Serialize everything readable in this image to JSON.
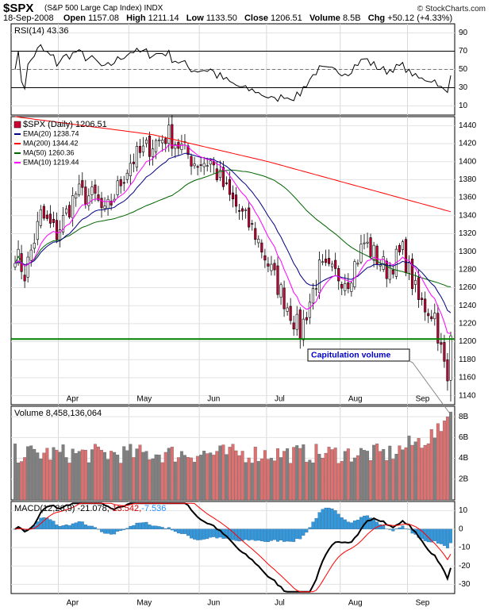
{
  "header": {
    "symbol": "$SPX",
    "name": "(S&P 500 Large Cap Index) INDX",
    "credit": "© StockCharts.com",
    "date": "18-Sep-2008",
    "open_label": "Open",
    "open": "1157.08",
    "high_label": "High",
    "high": "1211.14",
    "low_label": "Low",
    "low": "1133.50",
    "close_label": "Close",
    "close": "1206.51",
    "volume_label": "Volume",
    "volume": "8.5B",
    "chg_label": "Chg",
    "chg": "+50.12 (+4.33%)"
  },
  "rsi_panel": {
    "label": "RSI(14) 43.36",
    "ticks": [
      10,
      30,
      50,
      70,
      90
    ],
    "overbought": 70,
    "oversold": 30,
    "color": "#000000"
  },
  "price_panel": {
    "legend": [
      {
        "text": "$SPX (Daily) 1206.51",
        "color": "#000000"
      },
      {
        "text": "EMA(20) 1238.74",
        "color": "#000080"
      },
      {
        "text": "MA(200) 1344.42",
        "color": "#ff0000"
      },
      {
        "text": "MA(50) 1260.36",
        "color": "#006400"
      },
      {
        "text": "EMA(10) 1219.44",
        "color": "#ff00ff"
      }
    ],
    "ticks": [
      1140,
      1160,
      1180,
      1200,
      1220,
      1240,
      1260,
      1280,
      1300,
      1320,
      1340,
      1360,
      1380,
      1400,
      1420,
      1440
    ],
    "support_level": 1203,
    "support_color": "#008000",
    "annotation": "Capitulation volume",
    "up_color": "#ffffff",
    "down_color": "#cc0033"
  },
  "volume_panel": {
    "label": "Volume 8,458,136,064",
    "ticks": [
      "2B",
      "4B",
      "6B",
      "8B"
    ],
    "up_color": "#808080",
    "down_color": "#e07070"
  },
  "macd_panel": {
    "label_parts": [
      {
        "text": "MACD(12,26,9) -21.078,",
        "color": "#000000"
      },
      {
        "text": " -13.542,",
        "color": "#cc0000"
      },
      {
        "text": " -7.536",
        "color": "#1e90ff"
      }
    ],
    "ticks": [
      -30,
      -20,
      -10,
      0,
      10
    ],
    "hist_color": "#3399dd",
    "signal_color": "#ff0000"
  },
  "x_months": [
    "Apr",
    "May",
    "Jun",
    "Jul",
    "Aug",
    "Sep"
  ],
  "chart_data": {
    "type": "line",
    "title": "$SPX (S&P 500 Large Cap Index) INDX",
    "x_start": "2008-03-12",
    "x_end": "2008-09-18",
    "close_anchors": [
      {
        "date": "2008-03-12",
        "close": 1300
      },
      {
        "date": "2008-03-17",
        "close": 1275
      },
      {
        "date": "2008-03-24",
        "close": 1340
      },
      {
        "date": "2008-03-31",
        "close": 1320
      },
      {
        "date": "2008-04-08",
        "close": 1365
      },
      {
        "date": "2008-04-16",
        "close": 1360
      },
      {
        "date": "2008-04-21",
        "close": 1340
      },
      {
        "date": "2008-05-01",
        "close": 1400
      },
      {
        "date": "2008-05-12",
        "close": 1420
      },
      {
        "date": "2008-05-19",
        "close": 1430
      },
      {
        "date": "2008-05-29",
        "close": 1400
      },
      {
        "date": "2008-06-05",
        "close": 1400
      },
      {
        "date": "2008-06-13",
        "close": 1360
      },
      {
        "date": "2008-06-25",
        "close": 1320
      },
      {
        "date": "2008-07-03",
        "close": 1270
      },
      {
        "date": "2008-07-15",
        "close": 1210
      },
      {
        "date": "2008-07-23",
        "close": 1280
      },
      {
        "date": "2008-08-05",
        "close": 1270
      },
      {
        "date": "2008-08-12",
        "close": 1310
      },
      {
        "date": "2008-08-21",
        "close": 1280
      },
      {
        "date": "2008-08-28",
        "close": 1300
      },
      {
        "date": "2008-09-04",
        "close": 1245
      },
      {
        "date": "2008-09-11",
        "close": 1230
      },
      {
        "date": "2008-09-15",
        "close": 1190
      },
      {
        "date": "2008-09-17",
        "close": 1156
      },
      {
        "date": "2008-09-18",
        "close": 1206.51
      }
    ],
    "ma200_anchors": [
      {
        "date": "2008-03-12",
        "value": 1450
      },
      {
        "date": "2008-05-12",
        "value": 1430
      },
      {
        "date": "2008-07-01",
        "value": 1400
      },
      {
        "date": "2008-09-18",
        "value": 1344.42
      }
    ],
    "ylim": [
      1130,
      1450
    ],
    "rsi_ylim": [
      0,
      100
    ],
    "macd_ylim": [
      -35,
      15
    ],
    "volume_max_billions": 9,
    "last": {
      "ema20": 1238.74,
      "ma200": 1344.42,
      "ma50": 1260.36,
      "ema10": 1219.44,
      "rsi": 43.36,
      "macd": -21.078,
      "signal": -13.542,
      "hist": -7.536,
      "volume": 8458136064
    }
  }
}
